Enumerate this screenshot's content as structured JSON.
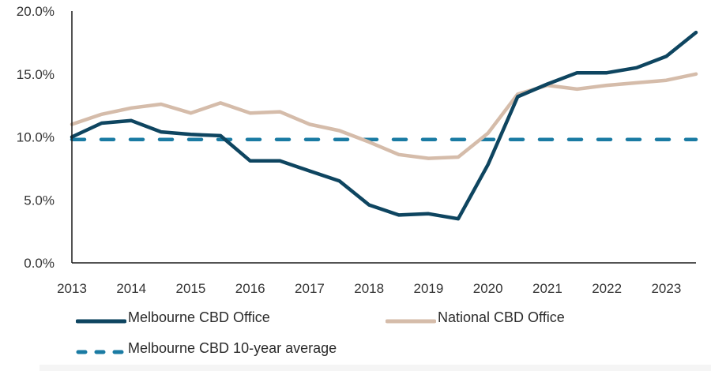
{
  "chart_data": {
    "type": "line",
    "title": "",
    "xlabel": "",
    "ylabel": "",
    "ylim": [
      0,
      20
    ],
    "yticks": [
      "0.0%",
      "5.0%",
      "10.0%",
      "15.0%",
      "20.0%"
    ],
    "ytick_values": [
      0,
      5,
      10,
      15,
      20
    ],
    "xticks": [
      "2013",
      "2014",
      "2015",
      "2016",
      "2017",
      "2018",
      "2019",
      "2020",
      "2021",
      "2022",
      "2023"
    ],
    "xtick_values": [
      2013,
      2014,
      2015,
      2016,
      2017,
      2018,
      2019,
      2020,
      2021,
      2022,
      2023
    ],
    "xlim": [
      2013,
      2023.5
    ],
    "grid": false,
    "legend_position": "bottom",
    "x": [
      2013,
      2013.5,
      2014,
      2014.5,
      2015,
      2015.5,
      2016,
      2016.5,
      2017,
      2017.5,
      2018,
      2018.5,
      2019,
      2019.5,
      2020,
      2020.5,
      2021,
      2021.5,
      2022,
      2022.5,
      2023,
      2023.5
    ],
    "series": [
      {
        "name": "Melbourne CBD Office",
        "color": "#0e4560",
        "style": "solid",
        "values": [
          10.0,
          11.1,
          11.3,
          10.4,
          10.2,
          10.1,
          8.1,
          8.1,
          7.3,
          6.5,
          4.6,
          3.8,
          3.9,
          3.5,
          7.8,
          13.2,
          14.2,
          15.1,
          15.1,
          15.5,
          16.4,
          18.3
        ]
      },
      {
        "name": "National CBD Office",
        "color": "#d5bcaa",
        "style": "solid",
        "values": [
          11.0,
          11.8,
          12.3,
          12.6,
          11.9,
          12.7,
          11.9,
          12.0,
          11.0,
          10.5,
          9.6,
          8.6,
          8.3,
          8.4,
          10.3,
          13.4,
          14.1,
          13.8,
          14.1,
          14.3,
          14.5,
          15.0
        ]
      },
      {
        "name": "Melbourne CBD 10-year average",
        "color": "#1a7ba3",
        "style": "dashed",
        "values": [
          9.8,
          9.8,
          9.8,
          9.8,
          9.8,
          9.8,
          9.8,
          9.8,
          9.8,
          9.8,
          9.8,
          9.8,
          9.8,
          9.8,
          9.8,
          9.8,
          9.8,
          9.8,
          9.8,
          9.8,
          9.8,
          9.8
        ]
      }
    ]
  },
  "legend": {
    "items": [
      {
        "label": "Melbourne CBD Office",
        "color": "#0e4560",
        "style": "solid"
      },
      {
        "label": "National CBD Office",
        "color": "#d5bcaa",
        "style": "solid"
      },
      {
        "label": "Melbourne CBD 10-year average",
        "color": "#1a7ba3",
        "style": "dashed"
      }
    ]
  }
}
